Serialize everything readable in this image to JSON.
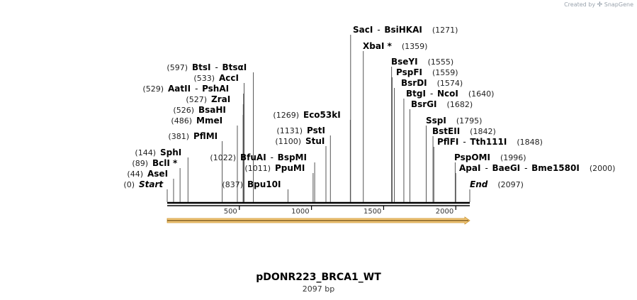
{
  "watermark": {
    "prefix": "Created by",
    "brand": "SnapGene"
  },
  "plasmid": {
    "name": "pDONR223_BRCA1_WT",
    "length_label": "2097 bp",
    "length_bp": 2097
  },
  "axis": {
    "tick_labels": [
      "500",
      "1000",
      "1500",
      "2000"
    ]
  },
  "feature": {
    "name": "BRCA1 ORF arrow",
    "start": 1,
    "end": 2097,
    "direction": "forward",
    "color": "#f5c97a"
  },
  "sites": [
    {
      "id": "start",
      "label": "Start",
      "position_label": "(0)",
      "pos": 0,
      "side": "left",
      "italic": true
    },
    {
      "id": "asei",
      "label": "AseI",
      "position_label": "(44)",
      "pos": 44,
      "side": "left"
    },
    {
      "id": "bcli",
      "label": "BclI *",
      "position_label": "(89)",
      "pos": 89,
      "side": "left"
    },
    {
      "id": "sphi",
      "label": "SphI",
      "position_label": "(144)",
      "pos": 144,
      "side": "left"
    },
    {
      "id": "pflmi",
      "label": "PflMI",
      "position_label": "(381)",
      "pos": 381,
      "side": "left"
    },
    {
      "id": "mmei",
      "label": "MmeI",
      "position_label": "(486)",
      "pos": 486,
      "side": "left"
    },
    {
      "id": "bsahi",
      "label": "BsaHI",
      "position_label": "(526)",
      "pos": 526,
      "side": "left"
    },
    {
      "id": "zrai",
      "label": "ZraI",
      "position_label": "(527)",
      "pos": 527,
      "side": "left"
    },
    {
      "id": "aatii",
      "label": "AatII",
      "extra": "PshAI",
      "position_label": "(529)",
      "pos": 529,
      "side": "left"
    },
    {
      "id": "acci",
      "label": "AccI",
      "position_label": "(533)",
      "pos": 533,
      "side": "left"
    },
    {
      "id": "btsi",
      "label": "BtsI",
      "extra": "BtsαI",
      "position_label": "(597)",
      "pos": 597,
      "side": "left"
    },
    {
      "id": "bpu10i",
      "label": "Bpu10I",
      "position_label": "(837)",
      "pos": 837,
      "side": "left"
    },
    {
      "id": "ppumi",
      "label": "PpuMI",
      "position_label": "(1011)",
      "pos": 1011,
      "side": "left"
    },
    {
      "id": "bfuai",
      "label": "BfuAI",
      "extra": "BspMI",
      "position_label": "(1022)",
      "pos": 1022,
      "side": "left"
    },
    {
      "id": "stui",
      "label": "StuI",
      "position_label": "(1100)",
      "pos": 1100,
      "side": "left"
    },
    {
      "id": "psti",
      "label": "PstI",
      "position_label": "(1131)",
      "pos": 1131,
      "side": "left"
    },
    {
      "id": "eco53ki",
      "label": "Eco53kI",
      "position_label": "(1269)",
      "pos": 1269,
      "side": "left"
    },
    {
      "id": "saci",
      "label": "SacI",
      "extra": "BsiHKAI",
      "position_label": "(1271)",
      "pos": 1271,
      "side": "right"
    },
    {
      "id": "xbai",
      "label": "XbaI *",
      "position_label": "(1359)",
      "pos": 1359,
      "side": "right"
    },
    {
      "id": "bseyi",
      "label": "BseYI",
      "position_label": "(1555)",
      "pos": 1555,
      "side": "right"
    },
    {
      "id": "pspfi",
      "label": "PspFI",
      "position_label": "(1559)",
      "pos": 1559,
      "side": "right"
    },
    {
      "id": "bsrdi",
      "label": "BsrDI",
      "position_label": "(1574)",
      "pos": 1574,
      "side": "right"
    },
    {
      "id": "btgi",
      "label": "BtgI",
      "extra": "NcoI",
      "position_label": "(1640)",
      "pos": 1640,
      "side": "right"
    },
    {
      "id": "bsrgi",
      "label": "BsrGI",
      "position_label": "(1682)",
      "pos": 1682,
      "side": "right"
    },
    {
      "id": "sspi",
      "label": "SspI",
      "position_label": "(1795)",
      "pos": 1795,
      "side": "right"
    },
    {
      "id": "bsteii",
      "label": "BstEII",
      "position_label": "(1842)",
      "pos": 1842,
      "side": "right"
    },
    {
      "id": "pflfi",
      "label": "PflFI",
      "extra": "Tth111I",
      "position_label": "(1848)",
      "pos": 1848,
      "side": "right"
    },
    {
      "id": "pspomi",
      "label": "PspOMI",
      "position_label": "(1996)",
      "pos": 1996,
      "side": "right"
    },
    {
      "id": "apai",
      "label": "ApaI",
      "extra": "BaeGI",
      "extra2": "Bme1580I",
      "position_label": "(2000)",
      "pos": 2000,
      "side": "right"
    },
    {
      "id": "end",
      "label": "End",
      "position_label": "(2097)",
      "pos": 2097,
      "side": "right",
      "italic": true
    }
  ]
}
